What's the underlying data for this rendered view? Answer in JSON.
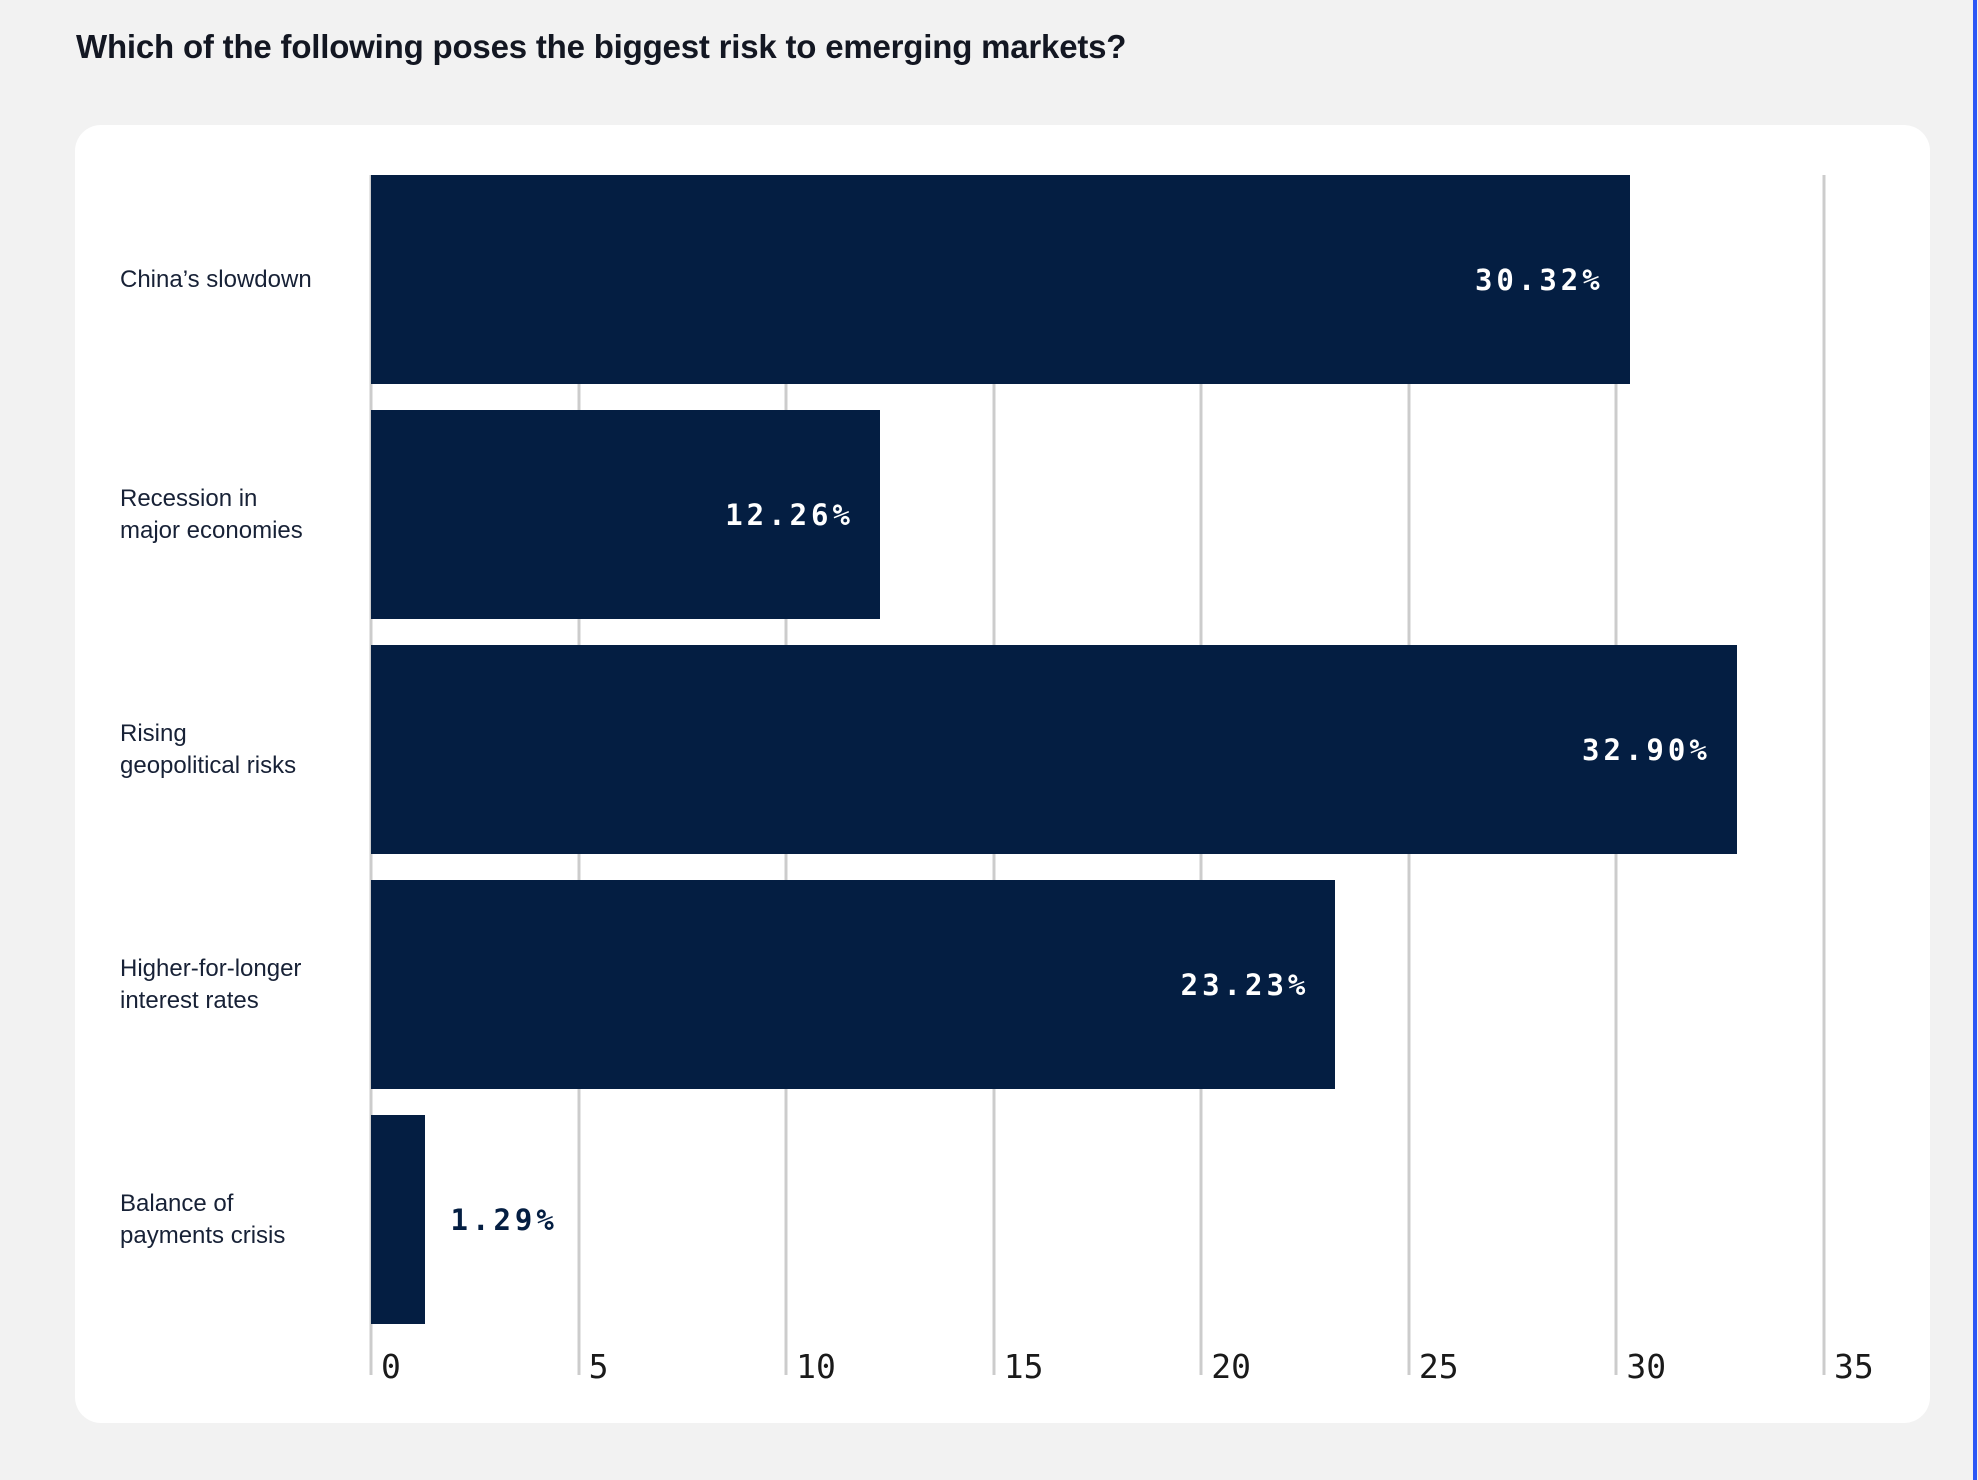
{
  "page": {
    "background_color": "#f2f2f2",
    "card_color": "#ffffff",
    "accent_edge_color": "#2c57f5"
  },
  "title": "Which of the following poses the biggest risk to emerging markets?",
  "chart_data": {
    "type": "bar",
    "orientation": "horizontal",
    "title": "Which of the following poses the biggest risk to emerging markets?",
    "categories": [
      "China’s slowdown",
      "Recession in\nmajor economies",
      "Rising\ngeopolitical risks",
      "Higher-for-longer\ninterest rates",
      "Balance of\npayments crisis"
    ],
    "values": [
      30.32,
      12.26,
      32.9,
      23.23,
      1.29
    ],
    "value_labels": [
      "30.32%",
      "12.26%",
      "32.90%",
      "23.23%",
      "1.29%"
    ],
    "value_label_inside": [
      true,
      true,
      true,
      true,
      false
    ],
    "xticks": [
      "0",
      "5",
      "10",
      "15",
      "20",
      "25",
      "30",
      "35"
    ],
    "xtick_values": [
      0,
      5,
      10,
      15,
      20,
      25,
      30,
      35
    ],
    "xlim": [
      0,
      35
    ],
    "grid": true,
    "legend": false,
    "bar_color": "#041e42",
    "gridline_color": "#cccccc",
    "value_label_color": "#ffffff",
    "value_label_outside_color": "#041e42",
    "category_label_color": "#172136",
    "tick_label_color": "#1a1a1a"
  }
}
